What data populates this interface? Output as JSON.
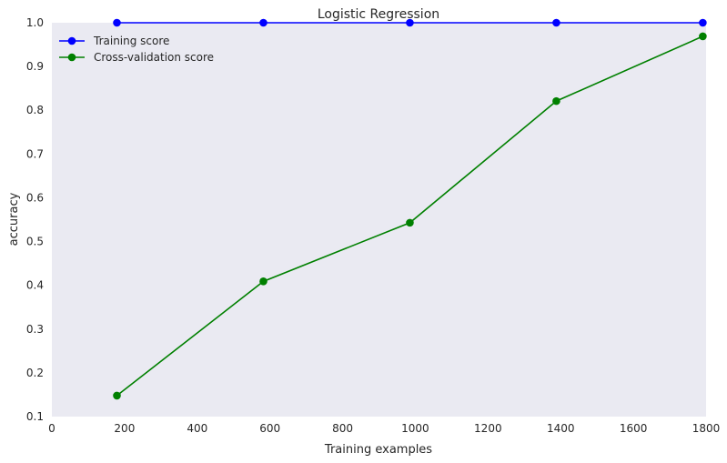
{
  "chart_data": {
    "type": "line",
    "title": "Logistic Regression",
    "xlabel": "Training examples",
    "ylabel": "accuracy",
    "xlim": [
      0,
      1800
    ],
    "ylim": [
      0.1,
      1.0
    ],
    "xticks": [
      0,
      200,
      400,
      600,
      800,
      1000,
      1200,
      1400,
      1600,
      1800
    ],
    "yticks": [
      0.1,
      0.2,
      0.3,
      0.4,
      0.5,
      0.6,
      0.7,
      0.8,
      0.9,
      1.0
    ],
    "xtick_labels": [
      "0",
      "200",
      "400",
      "600",
      "800",
      "1000",
      "1200",
      "1400",
      "1600",
      "1800"
    ],
    "ytick_labels": [
      "0.1",
      "0.2",
      "0.3",
      "0.4",
      "0.5",
      "0.6",
      "0.7",
      "0.8",
      "0.9",
      "1.0"
    ],
    "x": [
      179,
      582,
      985,
      1388,
      1791
    ],
    "series": [
      {
        "name": "Training score",
        "color": "#0000ff",
        "values": [
          1.0,
          1.0,
          1.0,
          1.0,
          1.0
        ]
      },
      {
        "name": "Cross-validation score",
        "color": "#008000",
        "values": [
          0.148,
          0.409,
          0.543,
          0.821,
          0.969
        ]
      }
    ],
    "grid": false,
    "legend_position": "top-left",
    "background": "#eaeaf2"
  }
}
